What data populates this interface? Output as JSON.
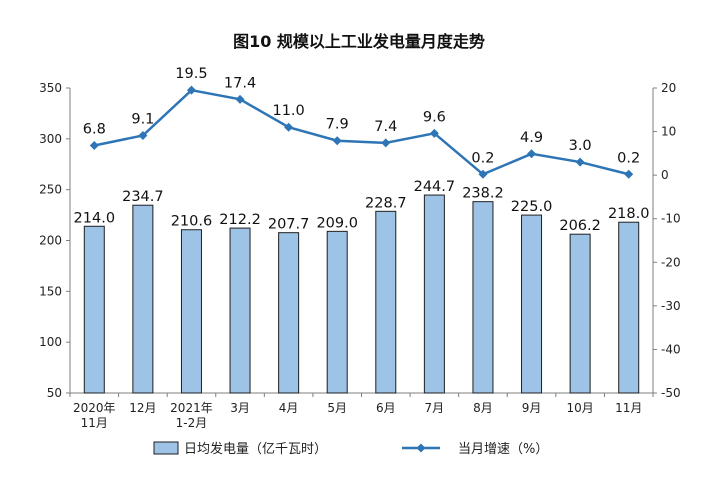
{
  "chart_data": {
    "type": "bar",
    "title": "图10  规模以上工业发电量月度走势",
    "categories": [
      [
        "2020年",
        "11月"
      ],
      [
        "12月"
      ],
      [
        "2021年",
        "1-2月"
      ],
      [
        "3月"
      ],
      [
        "4月"
      ],
      [
        "5月"
      ],
      [
        "6月"
      ],
      [
        "7月"
      ],
      [
        "8月"
      ],
      [
        "9月"
      ],
      [
        "10月"
      ],
      [
        "11月"
      ]
    ],
    "series": [
      {
        "name": "日均发电量（亿千瓦时）",
        "type": "bar",
        "axis": "left",
        "color": "#9DC3E6",
        "values": [
          214.0,
          234.7,
          210.6,
          212.2,
          207.7,
          209.0,
          228.7,
          244.7,
          238.2,
          225.0,
          206.2,
          218.0
        ],
        "labels": [
          "214.0",
          "234.7",
          "210.6",
          "212.2",
          "207.7",
          "209.0",
          "228.7",
          "244.7",
          "238.2",
          "225.0",
          "206.2",
          "218.0"
        ]
      },
      {
        "name": "当月增速（%）",
        "type": "line",
        "axis": "right",
        "color": "#2E75B6",
        "values": [
          6.8,
          9.1,
          19.5,
          17.4,
          11.0,
          7.9,
          7.4,
          9.6,
          0.2,
          4.9,
          3.0,
          0.2
        ],
        "labels": [
          "6.8",
          "9.1",
          "19.5",
          "17.4",
          "11.0",
          "7.9",
          "7.4",
          "9.6",
          "0.2",
          "4.9",
          "3.0",
          "0.2"
        ]
      }
    ],
    "y_left": {
      "min": 50,
      "max": 350,
      "ticks": [
        "50",
        "100",
        "150",
        "200",
        "250",
        "300",
        "350"
      ]
    },
    "y_right": {
      "min": -50,
      "max": 20,
      "ticks": [
        "-50",
        "-40",
        "-30",
        "-20",
        "-10",
        "0",
        "10",
        "20"
      ]
    },
    "grid": false,
    "legend": "bottom"
  }
}
